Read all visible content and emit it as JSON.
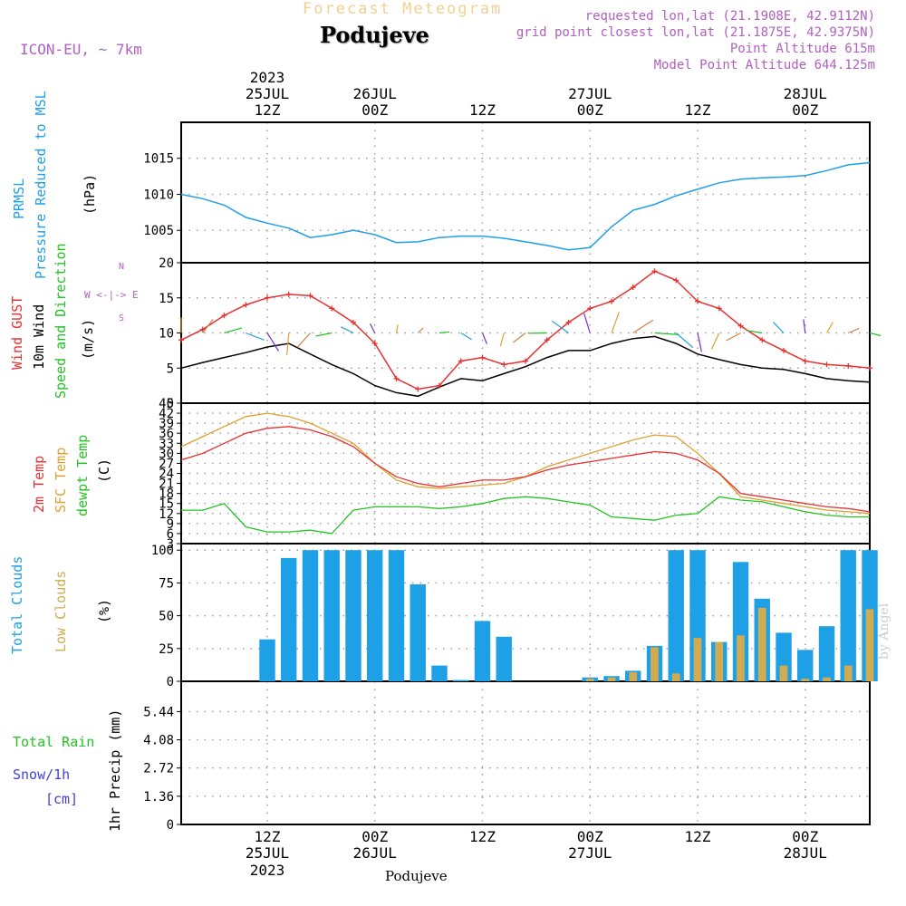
{
  "header": {
    "product_title": "Forecast Meteogram",
    "location": "Podujeve",
    "model": "ICON-EU, ~ 7km",
    "requested": "requested lon,lat (21.1908E, 42.9112N)",
    "grid_point": "grid point closest lon,lat (21.1875E, 42.9375N)",
    "point_altitude": "Point Altitude 615m",
    "model_altitude": "Model Point Altitude 644.125m",
    "watermark": "by Angel",
    "bottom_location": "Podujeve"
  },
  "colors": {
    "pressure": "#1ea0e6",
    "gust": "#e83030",
    "wind": "#000000",
    "dir_label": "#22c422",
    "temp": "#e83030",
    "sfc": "#e0a030",
    "dewpt": "#22c422",
    "total_clouds": "#1ea0e6",
    "low_clouds": "#d2aa50",
    "rain": "#22c422",
    "snow": "#4040dd",
    "compass": "#b060c0",
    "header_purple": "#b060c0",
    "title_tan": "#f0d090"
  },
  "time_axis": {
    "top_year": "2023",
    "top_dates": [
      "25JUL",
      "26JUL",
      "27JUL",
      "28JUL"
    ],
    "top_hours": [
      "12Z",
      "00Z",
      "12Z",
      "00Z",
      "12Z",
      "00Z"
    ],
    "bottom_hours": [
      "12Z",
      "00Z",
      "12Z",
      "00Z",
      "12Z",
      "00Z"
    ],
    "bottom_dates": [
      "25JUL",
      "26JUL",
      "27JUL",
      "28JUL"
    ],
    "bottom_year": "2023"
  },
  "panels": {
    "pressure": {
      "label_a": "PRMSL",
      "label_b": "Pressure Reduced to MSL",
      "unit": "(hPa)"
    },
    "wind": {
      "label_gust": "Wind GUST",
      "label_wind": "10m Wind",
      "label_dir": "Speed and Direction",
      "unit": "(m/s)",
      "compass_top": "N",
      "compass_mid": "W <-|-> E",
      "compass_bottom": "S"
    },
    "temp": {
      "label_t": "2m Temp",
      "label_sfc": "SFC Temp",
      "label_dew": "dewpt Temp",
      "unit": "(C)"
    },
    "clouds": {
      "label_total": "Total Clouds",
      "label_low": "Low Clouds",
      "unit": "(%)"
    },
    "precip": {
      "label_rain": "Total  Rain",
      "label_snow": "Snow/1h",
      "label_snow_unit": "[cm]",
      "unit": "1hr Precip (mm)"
    }
  },
  "chart_data": [
    {
      "type": "line",
      "title": "PRMSL Pressure Reduced to MSL",
      "ylabel": "(hPa)",
      "ylim": [
        1000.5,
        1020
      ],
      "yticks": [
        1005,
        1010,
        1015
      ],
      "x_hours": [
        0,
        3,
        6,
        9,
        12,
        15,
        18,
        21,
        24,
        27,
        30,
        33,
        36,
        39,
        42,
        45,
        48,
        51,
        54,
        57,
        60,
        63,
        66,
        69,
        72,
        75,
        78,
        81,
        84,
        87,
        90,
        93,
        96
      ],
      "values": [
        1010.0,
        1009.4,
        1008.5,
        1006.8,
        1006.0,
        1005.3,
        1004.0,
        1004.4,
        1005.0,
        1004.4,
        1003.3,
        1003.4,
        1004.0,
        1004.2,
        1004.2,
        1003.9,
        1003.4,
        1002.9,
        1002.3,
        1002.6,
        1005.5,
        1007.8,
        1008.6,
        1009.8,
        1010.7,
        1011.6,
        1012.1,
        1012.3,
        1012.4,
        1012.6,
        1013.3,
        1014.1,
        1014.4
      ]
    },
    {
      "type": "line",
      "title": "Wind GUST / 10m Wind Speed and Direction",
      "ylabel": "(m/s)",
      "ylim": [
        0,
        20
      ],
      "yticks": [
        0,
        5,
        10,
        15,
        20
      ],
      "x_hours": [
        0,
        3,
        6,
        9,
        12,
        15,
        18,
        21,
        24,
        27,
        30,
        33,
        36,
        39,
        42,
        45,
        48,
        51,
        54,
        57,
        60,
        63,
        66,
        69,
        72,
        75,
        78,
        81,
        84,
        87,
        90,
        93,
        96
      ],
      "series": [
        {
          "name": "Wind GUST",
          "values": [
            9.0,
            10.5,
            12.5,
            14.0,
            15.0,
            15.5,
            15.3,
            13.5,
            11.5,
            8.5,
            3.5,
            2.0,
            2.5,
            6.0,
            6.5,
            5.5,
            6.0,
            9.0,
            11.5,
            13.5,
            14.5,
            16.5,
            18.8,
            17.5,
            14.5,
            13.5,
            11.0,
            9.0,
            7.5,
            6.0,
            5.5,
            5.3,
            5.0
          ]
        },
        {
          "name": "10m Wind",
          "values": [
            5.0,
            5.8,
            6.5,
            7.2,
            8.0,
            8.5,
            7.0,
            5.5,
            4.2,
            2.5,
            1.5,
            1.0,
            2.3,
            3.5,
            3.2,
            4.2,
            5.2,
            6.5,
            7.5,
            7.5,
            8.5,
            9.2,
            9.5,
            8.5,
            7.0,
            6.2,
            5.5,
            5.0,
            4.8,
            4.2,
            3.5,
            3.2,
            3.0
          ]
        }
      ],
      "wind_direction_arrows": "shown"
    },
    {
      "type": "line",
      "title": "2m Temp / SFC Temp / dewpt Temp",
      "ylabel": "(C)",
      "ylim": [
        3,
        45
      ],
      "yticks": [
        3,
        6,
        9,
        12,
        15,
        18,
        21,
        24,
        27,
        30,
        33,
        36,
        39,
        42,
        45
      ],
      "x_hours": [
        0,
        3,
        6,
        9,
        12,
        15,
        18,
        21,
        24,
        27,
        30,
        33,
        36,
        39,
        42,
        45,
        48,
        51,
        54,
        57,
        60,
        63,
        66,
        69,
        72,
        75,
        78,
        81,
        84,
        87,
        90,
        93,
        96
      ],
      "series": [
        {
          "name": "2m Temp",
          "values": [
            28.0,
            30.0,
            33.0,
            36.0,
            37.5,
            38.0,
            37.0,
            35.0,
            32.0,
            27.0,
            23.0,
            21.0,
            20.0,
            21.0,
            22.0,
            22.0,
            23.0,
            25.0,
            26.5,
            27.5,
            28.5,
            29.5,
            30.5,
            30.0,
            28.0,
            24.0,
            18.0,
            17.0,
            16.0,
            15.0,
            14.0,
            13.5,
            12.5
          ]
        },
        {
          "name": "SFC Temp",
          "values": [
            32.0,
            35.0,
            38.0,
            41.0,
            42.0,
            41.0,
            39.0,
            36.0,
            33.0,
            27.0,
            22.0,
            20.0,
            19.5,
            20.0,
            20.5,
            21.0,
            23.0,
            26.0,
            28.0,
            30.0,
            32.0,
            34.0,
            35.5,
            35.0,
            30.0,
            24.0,
            17.0,
            16.0,
            15.0,
            14.0,
            13.0,
            12.5,
            12.0
          ]
        },
        {
          "name": "dewpt Temp",
          "values": [
            13.0,
            13.0,
            15.0,
            8.0,
            6.5,
            6.5,
            7.0,
            6.0,
            13.0,
            14.0,
            14.0,
            14.0,
            13.5,
            14.0,
            15.0,
            16.5,
            17.0,
            16.5,
            15.5,
            14.5,
            11.0,
            10.5,
            10.0,
            11.5,
            12.0,
            17.0,
            16.0,
            15.5,
            14.0,
            12.5,
            11.5,
            11.0,
            11.0
          ]
        }
      ]
    },
    {
      "type": "bar",
      "title": "Total Clouds / Low Clouds",
      "ylabel": "(%)",
      "ylim": [
        0,
        105
      ],
      "yticks": [
        0,
        25,
        50,
        75,
        100
      ],
      "x_hours": [
        0,
        3,
        6,
        9,
        12,
        15,
        18,
        21,
        24,
        27,
        30,
        33,
        36,
        39,
        42,
        45,
        48,
        51,
        54,
        57,
        60,
        63,
        66,
        69,
        72,
        75,
        78,
        81,
        84,
        87,
        90,
        93,
        96
      ],
      "series": [
        {
          "name": "Total Clouds",
          "values": [
            0,
            0,
            0,
            0,
            32,
            94,
            100,
            100,
            100,
            100,
            100,
            74,
            12,
            1,
            46,
            34,
            0,
            0,
            0,
            3,
            4,
            8,
            27,
            100,
            100,
            30,
            91,
            63,
            37,
            24,
            42,
            100,
            100
          ]
        },
        {
          "name": "Low Clouds",
          "values": [
            0,
            0,
            0,
            0,
            0,
            0,
            0,
            0,
            0,
            0,
            0,
            0,
            0,
            0,
            0,
            0,
            0,
            0,
            0,
            2,
            3,
            7,
            26,
            6,
            33,
            30,
            35,
            56,
            12,
            2,
            3,
            12,
            55
          ]
        }
      ]
    },
    {
      "type": "bar",
      "title": "1hr Precip (mm)",
      "ylabel": "1hr Precip (mm)",
      "ylim": [
        0,
        6.9
      ],
      "yticks": [
        0,
        1.36,
        2.72,
        4.08,
        5.44
      ],
      "x_hours": [
        0,
        3,
        6,
        9,
        12,
        15,
        18,
        21,
        24,
        27,
        30,
        33,
        36,
        39,
        42,
        45,
        48,
        51,
        54,
        57,
        60,
        63,
        66,
        69,
        72,
        75,
        78,
        81,
        84,
        87,
        90,
        93,
        96
      ],
      "series": [
        {
          "name": "Total Rain",
          "values": [
            0,
            0,
            0,
            0,
            0,
            0,
            0,
            0,
            0,
            0,
            0,
            0,
            0,
            0,
            0,
            0,
            0,
            0,
            0,
            0,
            0,
            0,
            0,
            0,
            0,
            0,
            0,
            0,
            0,
            0,
            0,
            0,
            0
          ]
        },
        {
          "name": "Snow/1h",
          "values": [
            0,
            0,
            0,
            0,
            0,
            0,
            0,
            0,
            0,
            0,
            0,
            0,
            0,
            0,
            0,
            0,
            0,
            0,
            0,
            0,
            0,
            0,
            0,
            0,
            0,
            0,
            0,
            0,
            0,
            0,
            0,
            0,
            0
          ]
        }
      ]
    }
  ]
}
